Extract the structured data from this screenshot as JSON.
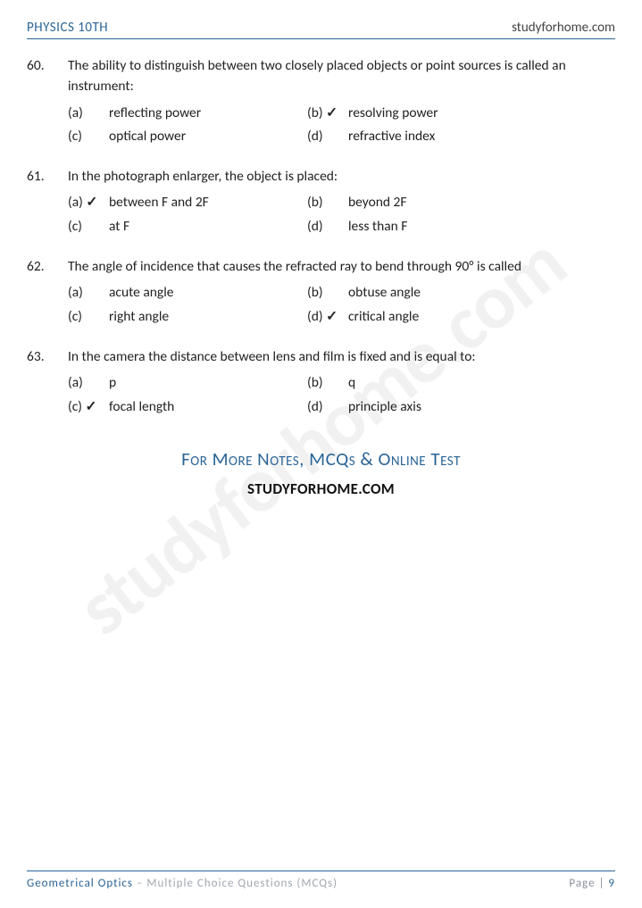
{
  "header": {
    "left": "PHYSICS 10TH",
    "right": "studyforhome.com"
  },
  "watermark": "studyforhome.com",
  "questions": [
    {
      "num": "60.",
      "text": "The ability to distinguish between two closely placed objects or point sources is called an instrument:",
      "options": [
        {
          "label": "(a)",
          "text": "reflecting power",
          "correct": false
        },
        {
          "label": "(b)",
          "text": "resolving power",
          "correct": true
        },
        {
          "label": "(c)",
          "text": "optical power",
          "correct": false
        },
        {
          "label": "(d)",
          "text": "refractive index",
          "correct": false
        }
      ]
    },
    {
      "num": "61.",
      "text": "In the photograph enlarger, the object is placed:",
      "options": [
        {
          "label": "(a)",
          "text": "between F and 2F",
          "correct": true
        },
        {
          "label": "(b)",
          "text": "beyond 2F",
          "correct": false
        },
        {
          "label": "(c)",
          "text": "at F",
          "correct": false
        },
        {
          "label": "(d)",
          "text": "less than F",
          "correct": false
        }
      ]
    },
    {
      "num": "62.",
      "text": "The angle of incidence that causes the refracted ray to bend through 90° is called",
      "options": [
        {
          "label": "(a)",
          "text": "acute angle",
          "correct": false
        },
        {
          "label": "(b)",
          "text": "obtuse angle",
          "correct": false
        },
        {
          "label": "(c)",
          "text": "right angle",
          "correct": false
        },
        {
          "label": "(d)",
          "text": "critical angle",
          "correct": true
        }
      ]
    },
    {
      "num": "63.",
      "text": "In the camera the distance between lens and film is fixed and is equal to:",
      "options": [
        {
          "label": "(a)",
          "text": "p",
          "correct": false
        },
        {
          "label": "(b)",
          "text": "q",
          "correct": false
        },
        {
          "label": "(c)",
          "text": "focal length",
          "correct": true
        },
        {
          "label": "(d)",
          "text": "principle axis",
          "correct": false
        }
      ]
    }
  ],
  "more_notes": "For More Notes, MCQs & Online Test",
  "study_url_bold": "STUDYFORHOME",
  "study_url_rest": ".COM",
  "footer": {
    "topic": "Geometrical Optics",
    "subtitle": " – Multiple Choice Questions (MCQs)",
    "page_label": "Page | ",
    "page_num": "9"
  },
  "checkmark": "✓",
  "colors": {
    "accent": "#2a6496",
    "text": "#222222",
    "muted": "#a0a7b0",
    "background": "#ffffff"
  }
}
